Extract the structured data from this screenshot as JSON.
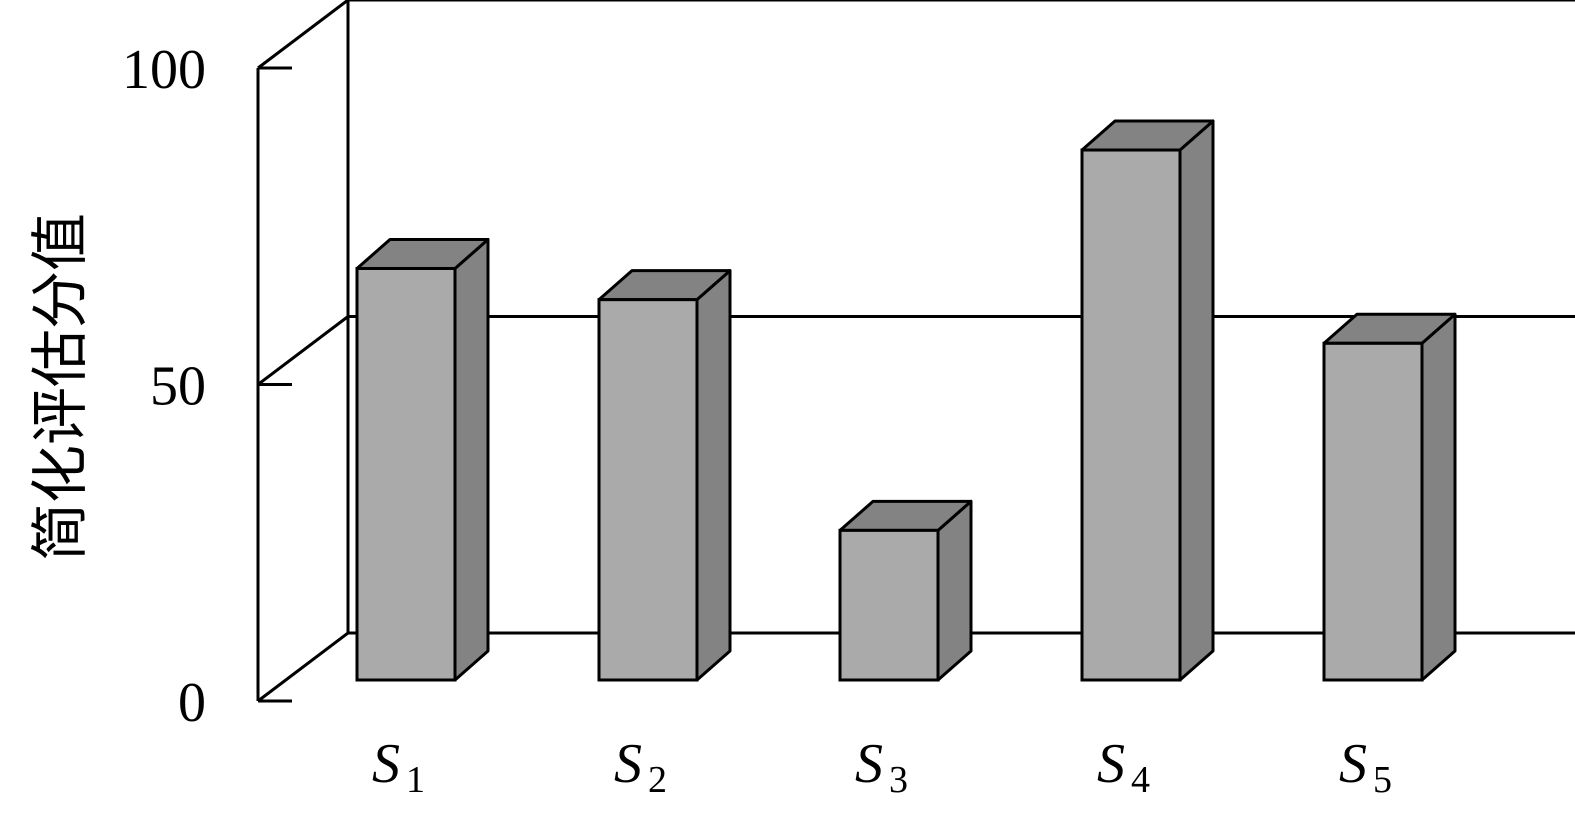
{
  "chart_data": {
    "type": "bar",
    "categories": [
      "S1",
      "S2",
      "S3",
      "S4",
      "S5"
    ],
    "category_labels": [
      {
        "base": "S",
        "sub": "1"
      },
      {
        "base": "S",
        "sub": "2"
      },
      {
        "base": "S",
        "sub": "3"
      },
      {
        "base": "S",
        "sub": "4"
      },
      {
        "base": "S",
        "sub": "5"
      }
    ],
    "values": [
      66,
      61,
      24,
      85,
      54
    ],
    "title": "",
    "xlabel": "",
    "ylabel": "简化评估分值",
    "ylim": [
      0,
      100
    ],
    "yticks": [
      "0",
      "50",
      "100"
    ],
    "grid": true,
    "three_d": true,
    "colors": {
      "bar_front": "#aaaaaa",
      "bar_side": "#838383",
      "bar_top": "#838383",
      "outline": "#000000"
    }
  }
}
